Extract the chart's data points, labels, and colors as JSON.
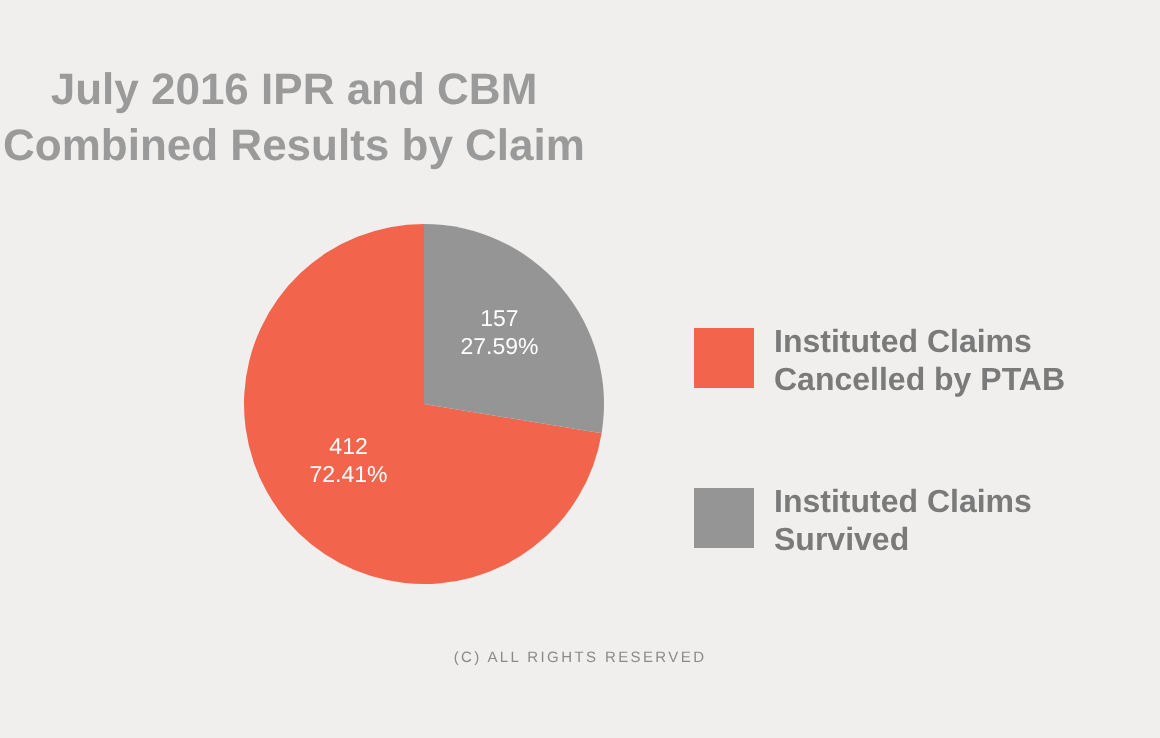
{
  "chart_data": {
    "type": "pie",
    "title": "July 2016 IPR and CBM\nCombined Results by Claim",
    "categories": [
      "Instituted Claims Cancelled by PTAB",
      "Instituted Claims Survived"
    ],
    "values": [
      412,
      157
    ],
    "colors": [
      "#f2644b",
      "#959595"
    ],
    "value_labels": [
      "412\n72.41%",
      "157\n27.59%"
    ],
    "legend": "right",
    "annotations": [
      "(C) ALL RIGHTS RESERVED"
    ]
  }
}
